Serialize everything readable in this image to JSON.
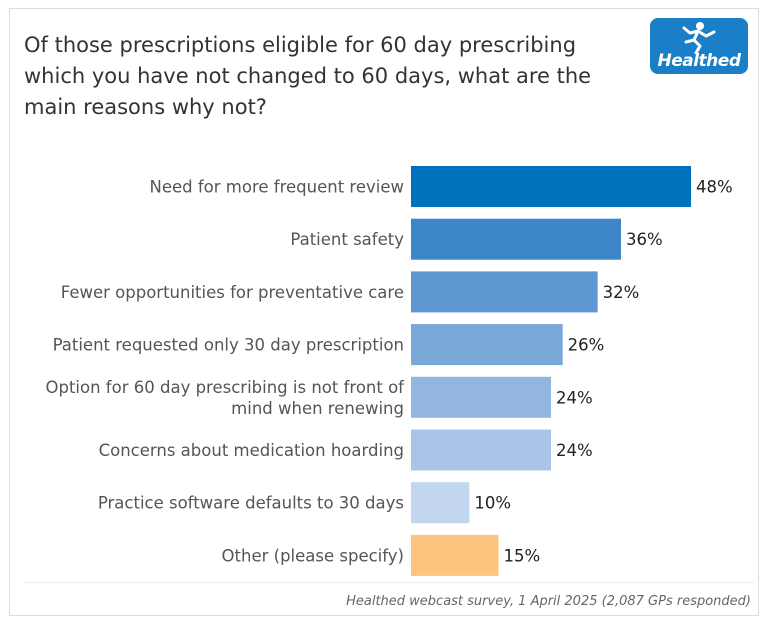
{
  "title": "Of those prescriptions eligible for 60 day prescribing which you have not changed to 60 days, what are the main reasons why not?",
  "logo": {
    "text": "Healthed",
    "color": "#1a7fc6"
  },
  "footer": "Healthed webcast survey, 1 April 2025 (2,087 GPs responded)",
  "chart_data": {
    "type": "bar",
    "orientation": "horizontal",
    "categories": [
      "Need for more frequent review",
      "Patient safety",
      "Fewer opportunities for preventative care",
      "Patient requested only 30 day prescription",
      "Option for 60 day prescribing is not front of mind when renewing",
      "Concerns about medication hoarding",
      "Practice software defaults to 30 days",
      "Other (please specify)"
    ],
    "category_lines": [
      [
        "Need for more frequent review"
      ],
      [
        "Patient safety"
      ],
      [
        "Fewer opportunities for preventative care"
      ],
      [
        "Patient requested only 30 day prescription"
      ],
      [
        "Option for 60 day prescribing is not front of",
        "mind when renewing"
      ],
      [
        "Concerns about medication hoarding"
      ],
      [
        "Practice software defaults to 30 days"
      ],
      [
        "Other (please specify)"
      ]
    ],
    "values": [
      48,
      36,
      32,
      26,
      24,
      24,
      10,
      15
    ],
    "value_labels": [
      "48%",
      "36%",
      "32%",
      "26%",
      "24%",
      "24%",
      "10%",
      "15%"
    ],
    "colors": [
      "#0071bd",
      "#3d87c9",
      "#5e97d1",
      "#79a7d8",
      "#93b6df",
      "#a9c4e6",
      "#c3d6ef",
      "#fcc47f"
    ],
    "xlim": [
      0,
      48
    ],
    "grid": false,
    "legend": "none"
  }
}
